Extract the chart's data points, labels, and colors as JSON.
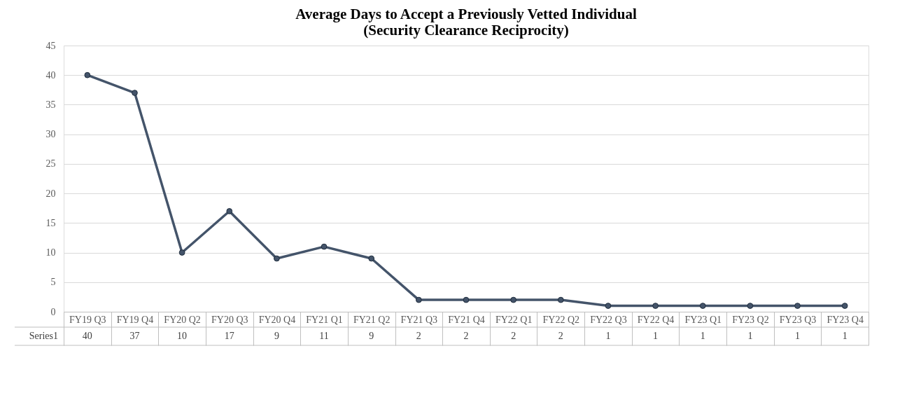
{
  "chart_data": {
    "type": "line",
    "title": [
      "Average Days to Accept a Previously Vetted Individual",
      "(Security Clearance Reciprocity)"
    ],
    "categories": [
      "FY19 Q3",
      "FY19 Q4",
      "FY20 Q2",
      "FY20 Q3",
      "FY20 Q4",
      "FY21 Q1",
      "FY21 Q2",
      "FY21 Q3",
      "FY21 Q4",
      "FY22 Q1",
      "FY22 Q2",
      "FY22 Q3",
      "FY22 Q4",
      "FY23 Q1",
      "FY23 Q2",
      "FY23 Q3",
      "FY23 Q4"
    ],
    "series": [
      {
        "name": "Series1",
        "color": "#44546a",
        "values": [
          40,
          37,
          10,
          17,
          9,
          11,
          9,
          2,
          2,
          2,
          2,
          1,
          1,
          1,
          1,
          1,
          1
        ]
      }
    ],
    "ylim": [
      0,
      45
    ],
    "yticks": [
      0,
      5,
      10,
      15,
      20,
      25,
      30,
      35,
      40,
      45
    ],
    "grid": "y",
    "marker": "circle",
    "line_style": "solid",
    "data_labels": true
  }
}
